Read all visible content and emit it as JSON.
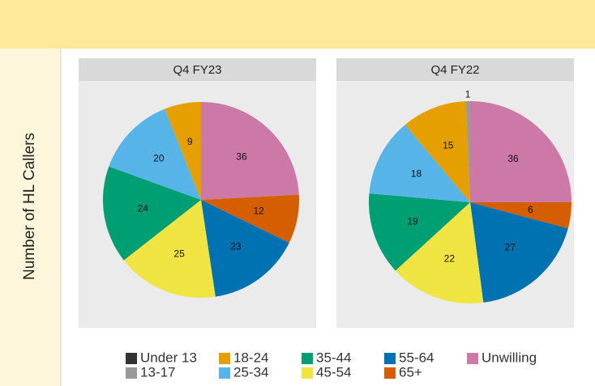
{
  "y_label": "Number of HL Callers",
  "legend": [
    {
      "name": "Under 13",
      "color": "#333333"
    },
    {
      "name": "13-17",
      "color": "#999999"
    },
    {
      "name": "18-24",
      "color": "#E69F00"
    },
    {
      "name": "25-34",
      "color": "#56B4E9"
    },
    {
      "name": "35-44",
      "color": "#009E73"
    },
    {
      "name": "45-54",
      "color": "#F0E442"
    },
    {
      "name": "55-64",
      "color": "#0072B2"
    },
    {
      "name": "65+",
      "color": "#D55E00"
    },
    {
      "name": "Unwilling",
      "color": "#CC79A7"
    }
  ],
  "chart_data": [
    {
      "type": "pie",
      "title": "Q4 FY23",
      "categories": [
        "Unwilling",
        "65+",
        "55-64",
        "45-54",
        "35-44",
        "25-34",
        "18-24"
      ],
      "values": [
        36,
        12,
        23,
        25,
        24,
        20,
        9
      ]
    },
    {
      "type": "pie",
      "title": "Q4 FY22",
      "categories": [
        "Unwilling",
        "65+",
        "55-64",
        "45-54",
        "35-44",
        "25-34",
        "18-24",
        "13-17"
      ],
      "values": [
        36,
        6,
        27,
        22,
        19,
        18,
        15,
        1
      ]
    }
  ]
}
